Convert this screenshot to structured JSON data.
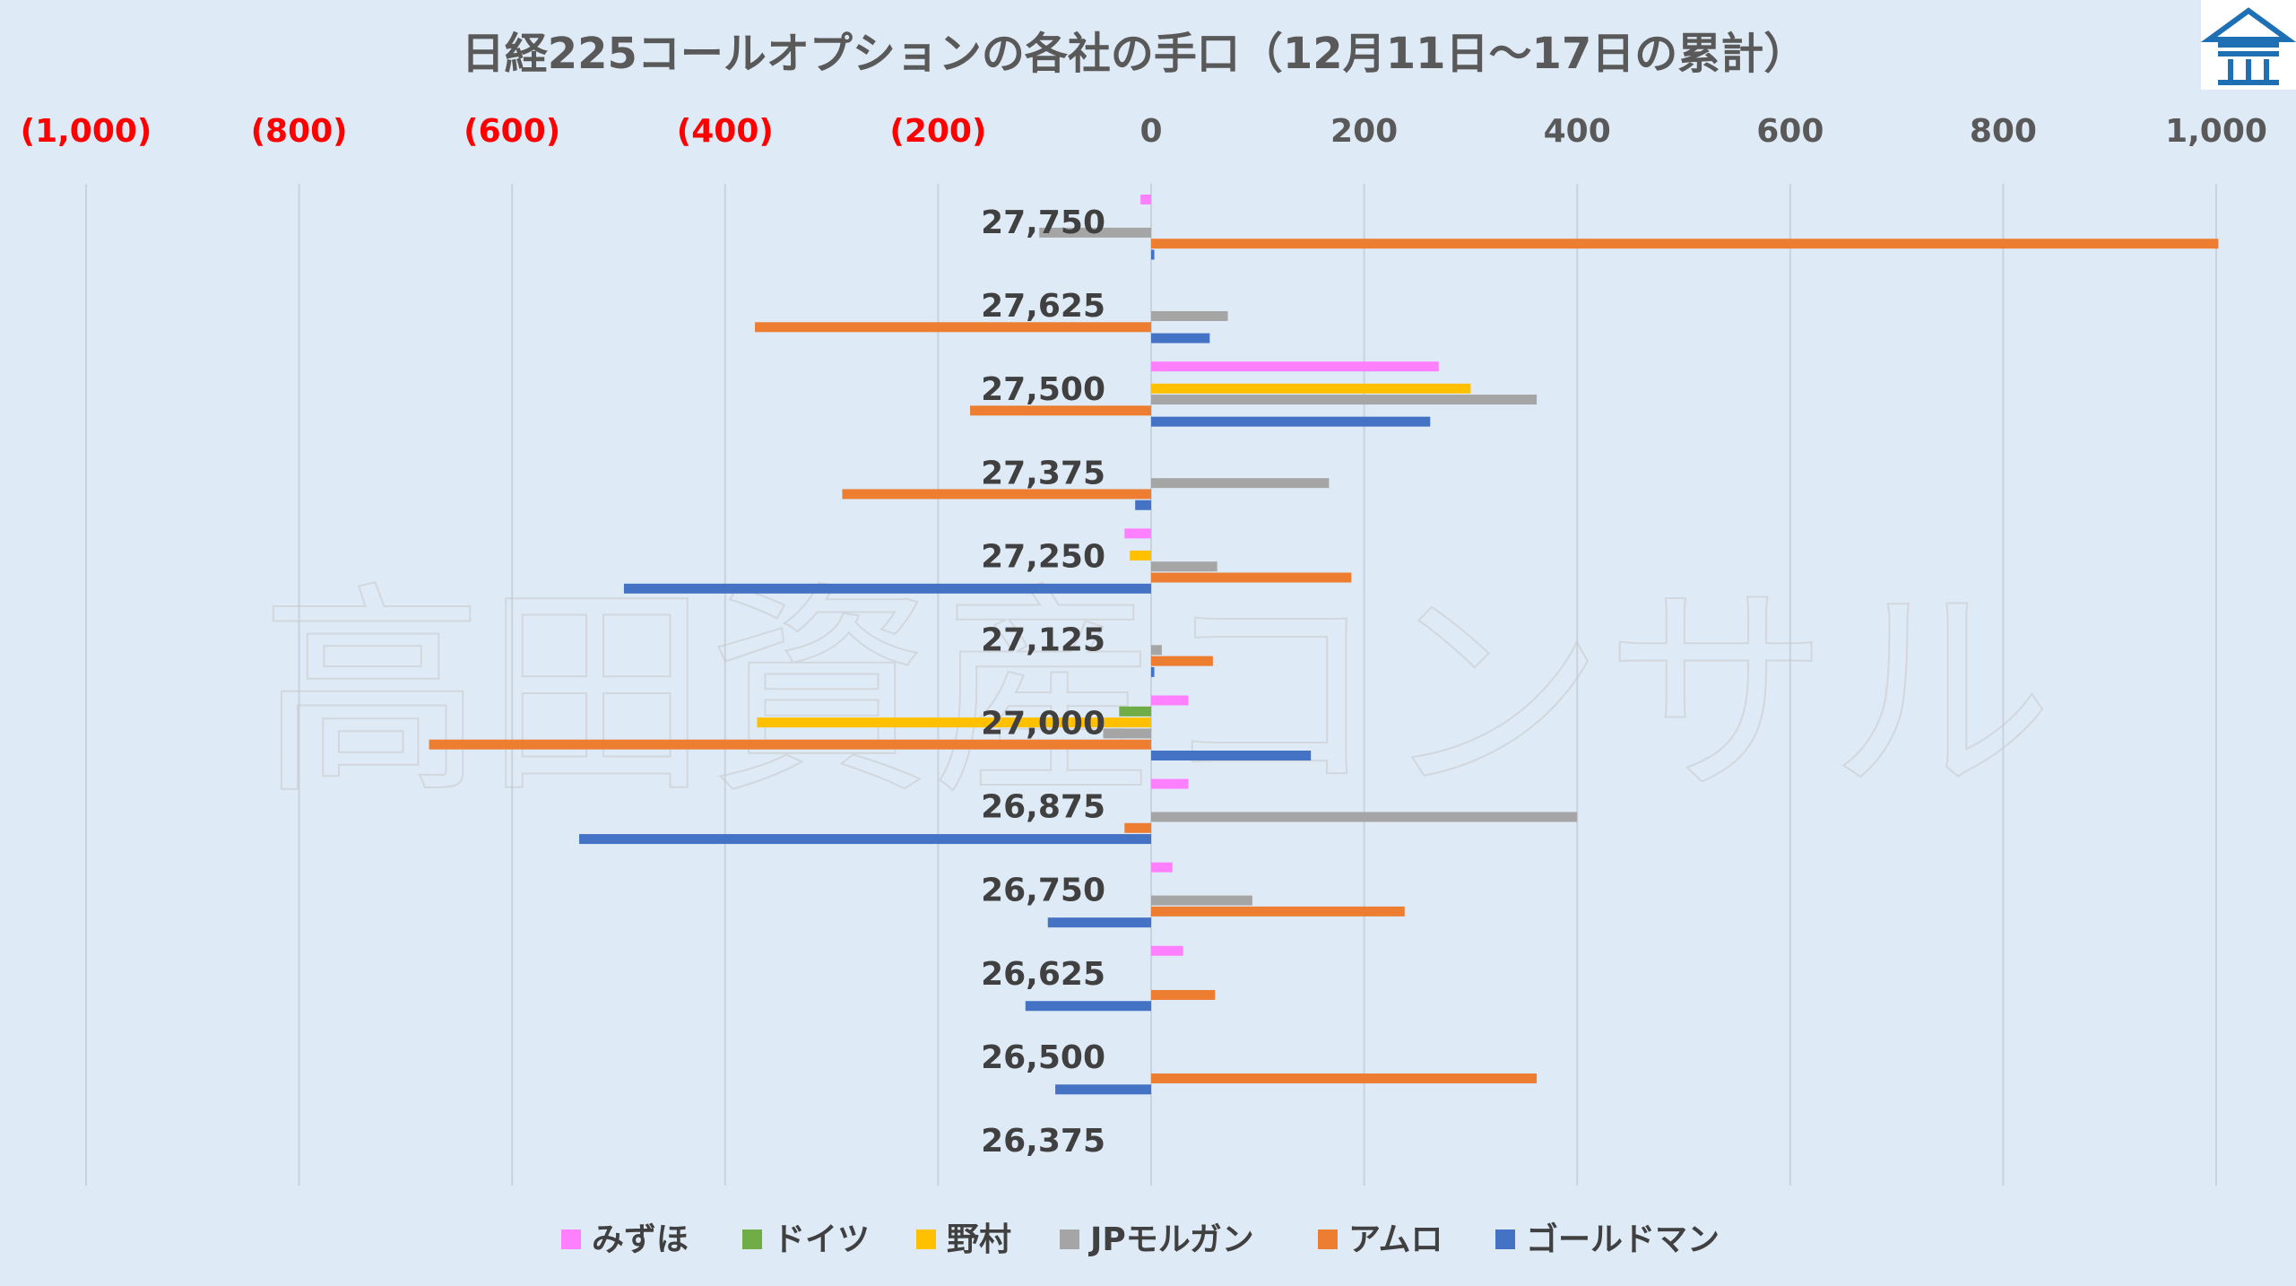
{
  "watermark": "高田資産コンサル",
  "chart_data": {
    "type": "bar",
    "orientation": "horizontal",
    "title": "日経225コールオプションの各社の手口（12月11日～17日の累計）",
    "xlim": [
      -1000,
      1000
    ],
    "x_ticks": [
      {
        "value": -1000,
        "label": "(1,000)",
        "color": "#ff0000"
      },
      {
        "value": -800,
        "label": "(800)",
        "color": "#ff0000"
      },
      {
        "value": -600,
        "label": "(600)",
        "color": "#ff0000"
      },
      {
        "value": -400,
        "label": "(400)",
        "color": "#ff0000"
      },
      {
        "value": -200,
        "label": "(200)",
        "color": "#ff0000"
      },
      {
        "value": 0,
        "label": "0",
        "color": "#595959"
      },
      {
        "value": 200,
        "label": "200",
        "color": "#595959"
      },
      {
        "value": 400,
        "label": "400",
        "color": "#595959"
      },
      {
        "value": 600,
        "label": "600",
        "color": "#595959"
      },
      {
        "value": 800,
        "label": "800",
        "color": "#595959"
      },
      {
        "value": 1000,
        "label": "1,000",
        "color": "#595959"
      }
    ],
    "grid": true,
    "legend_position": "bottom",
    "categories": [
      "27,750",
      "27,625",
      "27,500",
      "27,375",
      "27,250",
      "27,125",
      "27,000",
      "26,875",
      "26,750",
      "26,625",
      "26,500",
      "26,375"
    ],
    "series": [
      {
        "name": "みずほ",
        "color": "#ff80ff",
        "values": [
          -10,
          0,
          270,
          0,
          -25,
          0,
          35,
          35,
          20,
          30,
          0,
          0
        ]
      },
      {
        "name": "ドイツ",
        "color": "#70ad47",
        "values": [
          0,
          0,
          0,
          0,
          0,
          0,
          -30,
          0,
          0,
          0,
          0,
          0
        ]
      },
      {
        "name": "野村",
        "color": "#ffc000",
        "values": [
          0,
          0,
          300,
          0,
          -20,
          0,
          -370,
          0,
          0,
          0,
          0,
          0
        ]
      },
      {
        "name": "JPモルガン",
        "color": "#a5a5a5",
        "values": [
          -105,
          72,
          362,
          167,
          62,
          10,
          -45,
          400,
          95,
          0,
          0,
          0
        ]
      },
      {
        "name": "アムロ",
        "color": "#ed7d31",
        "values": [
          1002,
          -372,
          -170,
          -290,
          188,
          58,
          -678,
          -25,
          238,
          60,
          362,
          0
        ]
      },
      {
        "name": "ゴールドマン",
        "color": "#4472c4",
        "values": [
          3,
          55,
          262,
          -15,
          -495,
          3,
          150,
          -537,
          -97,
          -118,
          -90,
          0
        ]
      }
    ]
  }
}
